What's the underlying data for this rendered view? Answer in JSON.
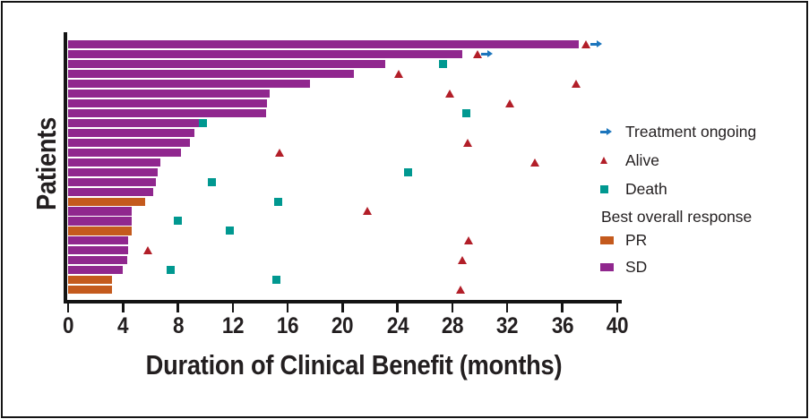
{
  "chart_data": {
    "type": "bar",
    "subtype": "swimmer-plot",
    "title": "",
    "xlabel": "Duration of Clinical Benefit (months)",
    "ylabel": "Patients",
    "xlim": [
      0,
      40
    ],
    "x_ticks": [
      0,
      4,
      8,
      12,
      16,
      20,
      24,
      28,
      32,
      36,
      40
    ],
    "grid": "off",
    "legend_position": "right",
    "legend": {
      "treatment_ongoing": "Treatment ongoing",
      "alive": "Alive",
      "death": "Death",
      "best_overall_response": "Best overall response",
      "pr": "PR",
      "sd": "SD"
    },
    "colors": {
      "SD": "#90278E",
      "PR": "#C45A1D",
      "death": "#009890",
      "alive": "#B21E28",
      "treatment_ongoing": "#1C75BC",
      "axis": "#141414",
      "text": "#231F20"
    },
    "patients": [
      {
        "id": 1,
        "best_response": "SD",
        "duration_months": 37.2,
        "events": {
          "alive": 37.7,
          "treatment_ongoing": 38.2
        }
      },
      {
        "id": 2,
        "best_response": "SD",
        "duration_months": 28.7,
        "events": {
          "alive": 29.8,
          "treatment_ongoing": 30.2
        }
      },
      {
        "id": 3,
        "best_response": "SD",
        "duration_months": 23.1,
        "events": {
          "death": 27.3
        }
      },
      {
        "id": 4,
        "best_response": "SD",
        "duration_months": 20.8,
        "events": {
          "alive": 24.1
        }
      },
      {
        "id": 5,
        "best_response": "SD",
        "duration_months": 17.6,
        "events": {
          "alive": 37.0
        }
      },
      {
        "id": 6,
        "best_response": "SD",
        "duration_months": 14.7,
        "events": {
          "alive": 27.8
        }
      },
      {
        "id": 7,
        "best_response": "SD",
        "duration_months": 14.5,
        "events": {
          "alive": 32.2
        }
      },
      {
        "id": 8,
        "best_response": "SD",
        "duration_months": 14.4,
        "events": {
          "death": 29.0
        }
      },
      {
        "id": 9,
        "best_response": "SD",
        "duration_months": 9.5,
        "events": {
          "death": 9.8
        }
      },
      {
        "id": 10,
        "best_response": "SD",
        "duration_months": 9.2,
        "events": {}
      },
      {
        "id": 11,
        "best_response": "SD",
        "duration_months": 8.9,
        "events": {
          "alive": 29.1
        }
      },
      {
        "id": 12,
        "best_response": "SD",
        "duration_months": 8.2,
        "events": {
          "alive": 15.4
        }
      },
      {
        "id": 13,
        "best_response": "SD",
        "duration_months": 6.7,
        "events": {
          "alive": 34.0
        }
      },
      {
        "id": 14,
        "best_response": "SD",
        "duration_months": 6.5,
        "events": {
          "death": 24.8
        }
      },
      {
        "id": 15,
        "best_response": "SD",
        "duration_months": 6.4,
        "events": {
          "death": 10.5
        }
      },
      {
        "id": 16,
        "best_response": "SD",
        "duration_months": 6.2,
        "events": {}
      },
      {
        "id": 17,
        "best_response": "PR",
        "duration_months": 5.6,
        "events": {
          "death": 15.3
        }
      },
      {
        "id": 18,
        "best_response": "SD",
        "duration_months": 4.6,
        "events": {
          "alive": 21.8
        }
      },
      {
        "id": 19,
        "best_response": "SD",
        "duration_months": 4.6,
        "events": {
          "death": 8.0
        }
      },
      {
        "id": 20,
        "best_response": "PR",
        "duration_months": 4.6,
        "events": {
          "death": 11.8
        }
      },
      {
        "id": 21,
        "best_response": "SD",
        "duration_months": 4.4,
        "events": {
          "alive": 29.2
        }
      },
      {
        "id": 22,
        "best_response": "SD",
        "duration_months": 4.4,
        "events": {
          "alive": 5.8
        }
      },
      {
        "id": 23,
        "best_response": "SD",
        "duration_months": 4.3,
        "events": {
          "alive": 28.7
        }
      },
      {
        "id": 24,
        "best_response": "SD",
        "duration_months": 4.0,
        "events": {
          "death": 7.5
        }
      },
      {
        "id": 25,
        "best_response": "PR",
        "duration_months": 3.2,
        "events": {
          "death": 15.2
        }
      },
      {
        "id": 26,
        "best_response": "PR",
        "duration_months": 3.2,
        "events": {
          "alive": 28.6
        }
      }
    ]
  }
}
